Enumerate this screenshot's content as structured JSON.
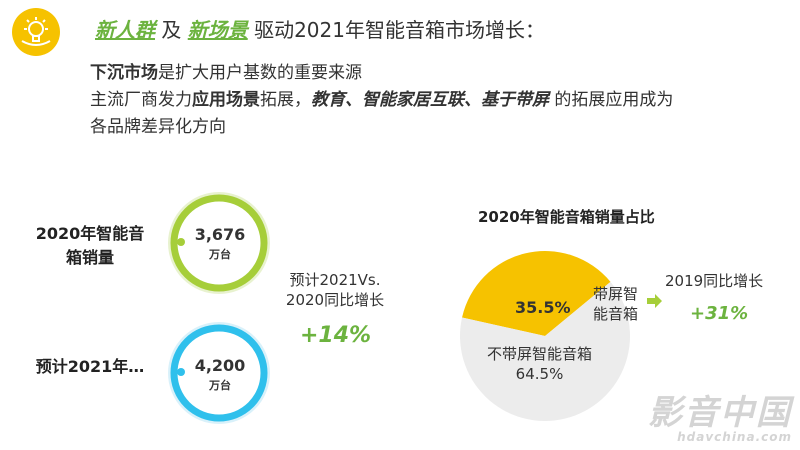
{
  "header": {
    "hl_part1": "新人群",
    "hl_part2": " 及 ",
    "hl_part3": "新场景",
    "hl_part4": " 驱动2021年智能音箱市场增长：",
    "line1_bold": "下沉市场",
    "line1_rest": "是扩大用户基数的重要来源",
    "line2_a": "主流厂商发力",
    "line2_b": "应用场景",
    "line2_c": "拓展，",
    "line2_d": "教育、智能家居互联、基于带屏",
    "line2_e": " 的拓展应用成为",
    "line3": "各品牌差异化方向"
  },
  "left": {
    "label_2020": "2020年智能音箱销量",
    "value_2020": "3,676",
    "unit": "万台",
    "label_2021": "预计2021年…",
    "value_2021": "4,200",
    "forecast_label": "预计2021Vs. 2020同比增长",
    "growth": "+14%"
  },
  "right": {
    "title": "2020年智能音箱销量占比",
    "screen_label": "带屏智能音箱",
    "nonscreen_label": "不带屏智能音箱 64.5%",
    "yoy_label": "2019同比增长",
    "yoy_value": "+31%"
  },
  "chart_data": {
    "type": "pie",
    "title": "2020年智能音箱销量占比",
    "slices": [
      {
        "label": "带屏智能音箱",
        "value": 35.5,
        "display": "35.5%",
        "color": "#F6C200"
      },
      {
        "label": "不带屏智能音箱",
        "value": 64.5,
        "display": "64.5%",
        "color": "#ECECEC"
      }
    ]
  },
  "watermark": {
    "line1": "影音中国",
    "line2": "hdavchina.com"
  },
  "colors": {
    "accent_green": "#6CB33F",
    "accent_yellow": "#F6C200",
    "ring_green": "#A6CE39",
    "ring_blue": "#2FC0EC"
  }
}
